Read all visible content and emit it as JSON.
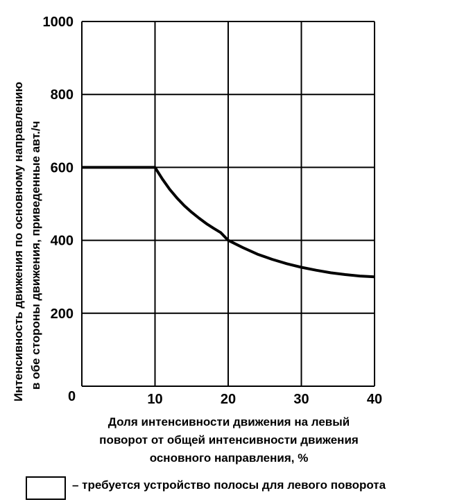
{
  "chart_data": {
    "type": "line",
    "ylabel_lines": [
      "Интенсивность движения по основному направлению",
      "в обе стороны движения, приведенные авт./ч"
    ],
    "xlabel_lines": [
      "Доля интенсивности движения на левый",
      "поворот от общей интенсивности движения",
      "основного направления, %"
    ],
    "xlim": [
      0,
      40
    ],
    "ylim": [
      0,
      1000
    ],
    "x_ticks": [
      0,
      10,
      20,
      30,
      40
    ],
    "y_ticks": [
      200,
      400,
      600,
      800,
      1000
    ],
    "x_tick_labels": [
      "10",
      "20",
      "30",
      "40"
    ],
    "y_tick_labels": [
      "200",
      "400",
      "600",
      "800",
      "1000"
    ],
    "origin_label": "0",
    "grid": true,
    "series": [
      {
        "x": [
          0,
          10,
          11,
          12,
          13,
          14,
          15,
          16,
          17,
          18,
          19,
          20,
          22,
          24,
          26,
          28,
          30,
          32,
          34,
          36,
          38,
          40
        ],
        "y": [
          600,
          600,
          568,
          540,
          516,
          495,
          477,
          461,
          446,
          433,
          421,
          400,
          380,
          362,
          348,
          336,
          326,
          318,
          311,
          306,
          302,
          300
        ]
      }
    ],
    "legend": {
      "text": "– требуется устройство полосы для левого поворота",
      "placement": "bottom"
    }
  }
}
